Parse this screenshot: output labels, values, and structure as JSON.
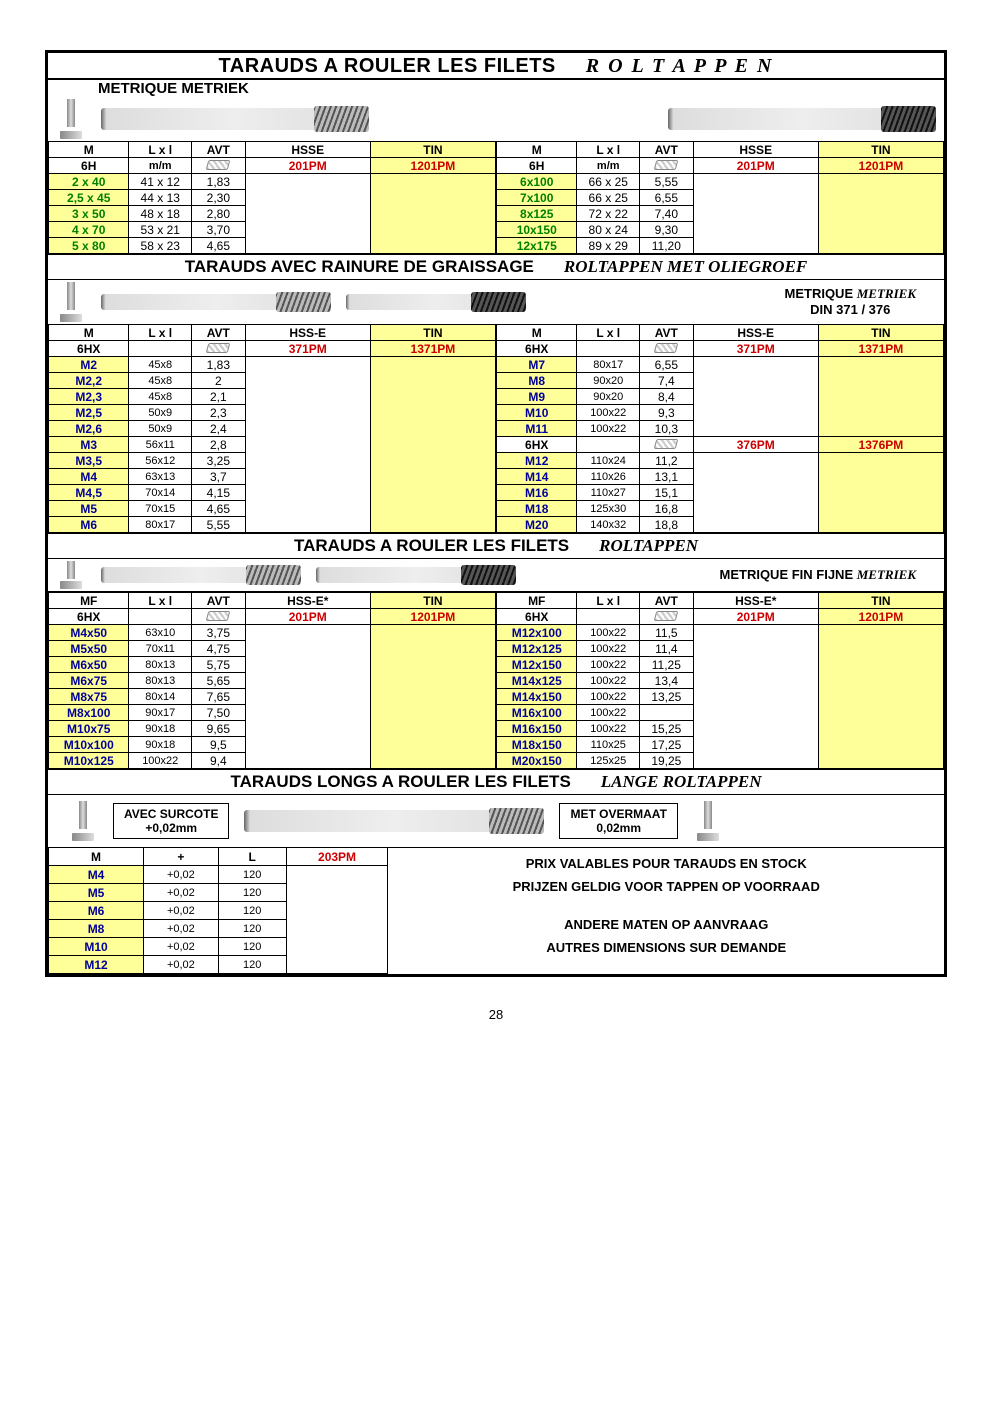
{
  "page_number": "28",
  "main_title": {
    "fr": "TARAUDS A ROULER LES FILETS",
    "nl": "R O L T A P P E N"
  },
  "sec1": {
    "header": "METRIQUE  METRIEK",
    "cols": [
      "M",
      "L x l",
      "AVT",
      "HSSE",
      "TIN"
    ],
    "sub_m": "6H",
    "sub_lxl": "m/m",
    "sub_hsse": "201PM",
    "sub_tin": "1201PM",
    "left": [
      {
        "m": "2 x 40",
        "l": "41 x 12",
        "a": "1,83"
      },
      {
        "m": "2,5 x 45",
        "l": "44 x 13",
        "a": "2,30"
      },
      {
        "m": "3 x 50",
        "l": "48 x 18",
        "a": "2,80"
      },
      {
        "m": "4 x 70",
        "l": "53 x 21",
        "a": "3,70"
      },
      {
        "m": "5 x 80",
        "l": "58 x 23",
        "a": "4,65"
      }
    ],
    "right": [
      {
        "m": "6x100",
        "l": "66 x 25",
        "a": "5,55"
      },
      {
        "m": "7x100",
        "l": "66 x 25",
        "a": "6,55"
      },
      {
        "m": "8x125",
        "l": "72 x 22",
        "a": "7,40"
      },
      {
        "m": "10x150",
        "l": "80 x 24",
        "a": "9,30"
      },
      {
        "m": "12x175",
        "l": "89 x 29",
        "a": "11,20"
      }
    ]
  },
  "sec2": {
    "title_fr": "TARAUDS  AVEC RAINURE DE GRAISSAGE",
    "title_nl": "ROLTAPPEN  MET OLIEGROEF",
    "label1": "METRIQUE",
    "label1i": "METRIEK",
    "label2": "DIN 371 / 376",
    "cols": [
      "M",
      "L x l",
      "AVT",
      "HSS-E",
      "TIN"
    ],
    "sub_m": "6HX",
    "sub_hsse": "371PM",
    "sub_tin": "1371PM",
    "sub_hsse2": "376PM",
    "sub_tin2": "1376PM",
    "left": [
      {
        "m": "M2",
        "l": "45x8",
        "a": "1,83"
      },
      {
        "m": "M2,2",
        "l": "45x8",
        "a": "2"
      },
      {
        "m": "M2,3",
        "l": "45x8",
        "a": "2,1"
      },
      {
        "m": "M2,5",
        "l": "50x9",
        "a": "2,3"
      },
      {
        "m": "M2,6",
        "l": "50x9",
        "a": "2,4"
      },
      {
        "m": "M3",
        "l": "56x11",
        "a": "2,8"
      },
      {
        "m": "M3,5",
        "l": "56x12",
        "a": "3,25"
      },
      {
        "m": "M4",
        "l": "63x13",
        "a": "3,7"
      },
      {
        "m": "M4,5",
        "l": "70x14",
        "a": "4,15"
      },
      {
        "m": "M5",
        "l": "70x15",
        "a": "4,65"
      },
      {
        "m": "M6",
        "l": "80x17",
        "a": "5,55"
      }
    ],
    "rightA": [
      {
        "m": "M7",
        "l": "80x17",
        "a": "6,55"
      },
      {
        "m": "M8",
        "l": "90x20",
        "a": "7,4"
      },
      {
        "m": "M9",
        "l": "90x20",
        "a": "8,4"
      },
      {
        "m": "M10",
        "l": "100x22",
        "a": "9,3"
      },
      {
        "m": "M11",
        "l": "100x22",
        "a": "10,3"
      }
    ],
    "rightB": [
      {
        "m": "M12",
        "l": "110x24",
        "a": "11,2"
      },
      {
        "m": "M14",
        "l": "110x26",
        "a": "13,1"
      },
      {
        "m": "M16",
        "l": "110x27",
        "a": "15,1"
      },
      {
        "m": "M18",
        "l": "125x30",
        "a": "16,8"
      },
      {
        "m": "M20",
        "l": "140x32",
        "a": "18,8"
      }
    ]
  },
  "sec3": {
    "title_fr": "TARAUDS  A ROULER LES FILETS",
    "title_nl": "ROLTAPPEN",
    "label": "METRIQUE FIN  FIJNE",
    "label_i": "METRIEK",
    "cols": [
      "MF",
      "L x l",
      "AVT",
      "HSS-E*",
      "TIN"
    ],
    "sub_m": "6HX",
    "sub_hsse": "201PM",
    "sub_tin": "1201PM",
    "left": [
      {
        "m": "M4x50",
        "l": "63x10",
        "a": "3,75"
      },
      {
        "m": "M5x50",
        "l": "70x11",
        "a": "4,75"
      },
      {
        "m": "M6x50",
        "l": "80x13",
        "a": "5,75"
      },
      {
        "m": "M6x75",
        "l": "80x13",
        "a": "5,65"
      },
      {
        "m": "M8x75",
        "l": "80x14",
        "a": "7,65"
      },
      {
        "m": "M8x100",
        "l": "90x17",
        "a": "7,50"
      },
      {
        "m": "M10x75",
        "l": "90x18",
        "a": "9,65"
      },
      {
        "m": "M10x100",
        "l": "90x18",
        "a": "9,5"
      },
      {
        "m": "M10x125",
        "l": "100x22",
        "a": "9,4"
      }
    ],
    "right": [
      {
        "m": "M12x100",
        "l": "100x22",
        "a": "11,5"
      },
      {
        "m": "M12x125",
        "l": "100x22",
        "a": "11,4"
      },
      {
        "m": "M12x150",
        "l": "100x22",
        "a": "11,25"
      },
      {
        "m": "M14x125",
        "l": "100x22",
        "a": "13,4"
      },
      {
        "m": "M14x150",
        "l": "100x22",
        "a": "13,25"
      },
      {
        "m": "M16x100",
        "l": "100x22",
        "a": ""
      },
      {
        "m": "M16x150",
        "l": "100x22",
        "a": "15,25"
      },
      {
        "m": "M18x150",
        "l": "110x25",
        "a": "17,25"
      },
      {
        "m": "M20x150",
        "l": "125x25",
        "a": "19,25"
      }
    ]
  },
  "sec4": {
    "title_fr": "TARAUDS LONGS A ROULER LES FILETS",
    "title_nl": "LANGE ROLTAPPEN",
    "box_fr": "AVEC SURCOTE",
    "box_fr2": "+0,02mm",
    "box_nl": "MET OVERMAAT",
    "box_nl2": "0,02mm",
    "cols": [
      "M",
      "+",
      "L",
      "203PM"
    ],
    "rows": [
      {
        "m": "M4",
        "p": "+0,02",
        "l": "120"
      },
      {
        "m": "M5",
        "p": "+0,02",
        "l": "120"
      },
      {
        "m": "M6",
        "p": "+0,02",
        "l": "120"
      },
      {
        "m": "M8",
        "p": "+0,02",
        "l": "120"
      },
      {
        "m": "M10",
        "p": "+0,02",
        "l": "120"
      },
      {
        "m": "M12",
        "p": "+0,02",
        "l": "120"
      }
    ],
    "note1": "PRIX VALABLES POUR TARAUDS EN STOCK",
    "note2": "PRIJZEN GELDIG VOOR TAPPEN OP VOORRAAD",
    "note3": "ANDERE MATEN OP AANVRAAG",
    "note4": "AUTRES DIMENSIONS SUR DEMANDE"
  },
  "colors": {
    "green": "#008000",
    "blue": "#000099",
    "red": "#cc0000",
    "yellow": "#ffff99"
  }
}
